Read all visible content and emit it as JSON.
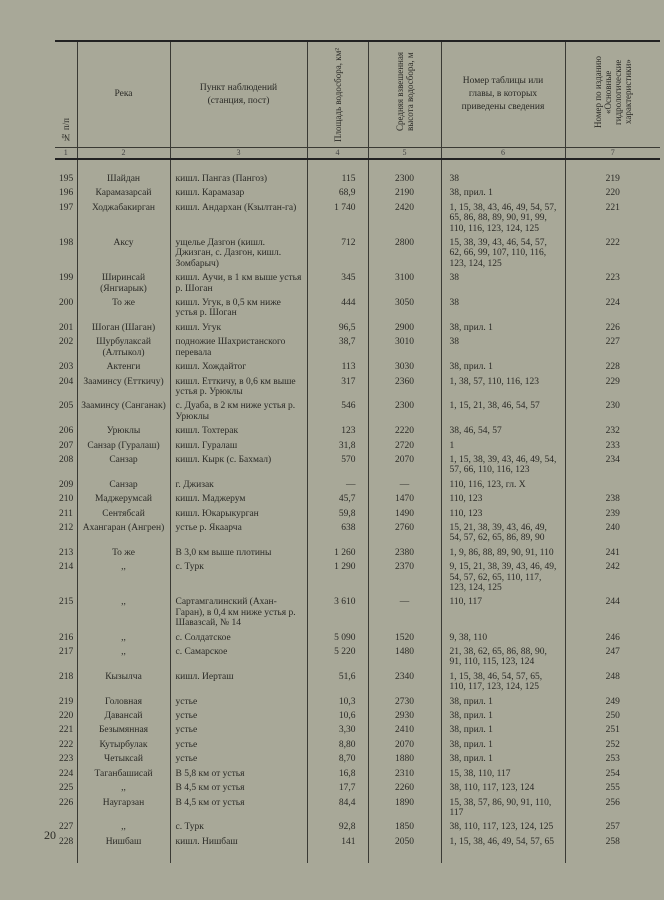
{
  "header": {
    "c1": "№ п/п",
    "c2": "Река",
    "c3": "Пункт наблюдений (станция, пост)",
    "c4": "Площадь водосбора, км²",
    "c5": "Средняя взвешенная высота водосбора, м",
    "c6": "Номер таблицы или главы, в которых приведены сведения",
    "c7": "Номер по изданию «Основные гидрологические характеристики»"
  },
  "colnums": [
    "1",
    "2",
    "3",
    "4",
    "5",
    "6",
    "7"
  ],
  "rows": [
    {
      "n": "195",
      "river": "Шайдан",
      "station": "кишл. Пангаз (Пангоз)",
      "area": "115",
      "height": "2300",
      "refs": "38",
      "pub": "219"
    },
    {
      "n": "196",
      "river": "Карамазарсай",
      "station": "кишл. Карамазар",
      "area": "68,9",
      "height": "2190",
      "refs": "38, прил. 1",
      "pub": "220"
    },
    {
      "n": "197",
      "river": "Ходжабакирган",
      "station": "кишл. Андархан (Кзылтан-га)",
      "area": "1 740",
      "height": "2420",
      "refs": "1, 15, 38, 43, 46, 49, 54, 57, 65, 86, 88, 89, 90, 91, 99, 110, 116, 123, 124, 125",
      "pub": "221"
    },
    {
      "n": "198",
      "river": "Аксу",
      "station": "ущелье Дазгон (кишл. Джизган, с. Дазгон, кишл. Зомбарыч)",
      "area": "712",
      "height": "2800",
      "refs": "15, 38, 39, 43, 46, 54, 57, 62, 66, 99, 107, 110, 116, 123, 124, 125",
      "pub": "222"
    },
    {
      "n": "199",
      "river": "Ширинсай (Янгиарык)",
      "station": "кишл. Аучи, в 1 км выше устья р. Шоган",
      "area": "345",
      "height": "3100",
      "refs": "38",
      "pub": "223"
    },
    {
      "n": "200",
      "river": "То же",
      "station": "кишл. Угук, в 0,5 км ниже устья р. Шоган",
      "area": "444",
      "height": "3050",
      "refs": "38",
      "pub": "224"
    },
    {
      "n": "201",
      "river": "Шоган (Шаган)",
      "station": "кишл. Угук",
      "area": "96,5",
      "height": "2900",
      "refs": "38, прил. 1",
      "pub": "226"
    },
    {
      "n": "202",
      "river": "Шурбулаксай (Алтыкол)",
      "station": "подножие Шахристанского перевала",
      "area": "38,7",
      "height": "3010",
      "refs": "38",
      "pub": "227"
    },
    {
      "n": "203",
      "river": "Актенги",
      "station": "кишл. Хождайтог",
      "area": "113",
      "height": "3030",
      "refs": "38, прил. 1",
      "pub": "228"
    },
    {
      "n": "204",
      "river": "Зааминсу (Етткичу)",
      "station": "кишл. Етткичу, в 0,6 км выше устья р. Урюклы",
      "area": "317",
      "height": "2360",
      "refs": "1, 38, 57, 110, 116, 123",
      "pub": "229"
    },
    {
      "n": "205",
      "river": "Зааминсу (Санганак)",
      "station": "с. Дуаба, в 2 км ниже устья р. Урюклы",
      "area": "546",
      "height": "2300",
      "refs": "1, 15, 21, 38, 46, 54, 57",
      "pub": "230"
    },
    {
      "n": "206",
      "river": "Урюклы",
      "station": "кишл. Тохтерак",
      "area": "123",
      "height": "2220",
      "refs": "38, 46, 54, 57",
      "pub": "232"
    },
    {
      "n": "207",
      "river": "Санзар (Гуралаш)",
      "station": "кишл. Гуралаш",
      "area": "31,8",
      "height": "2720",
      "refs": "1",
      "pub": "233"
    },
    {
      "n": "208",
      "river": "Санзар",
      "station": "кишл. Кырк (с. Бахмал)",
      "area": "570",
      "height": "2070",
      "refs": "1, 15, 38, 39, 43, 46, 49, 54, 57, 66, 110, 116, 123",
      "pub": "234"
    },
    {
      "n": "209",
      "river": "Санзар",
      "station": "г. Джизак",
      "area": "—",
      "height": "—",
      "refs": "110, 116, 123, гл. X",
      "pub": ""
    },
    {
      "n": "210",
      "river": "Маджерумсай",
      "station": "кишл. Маджерум",
      "area": "45,7",
      "height": "1470",
      "refs": "110, 123",
      "pub": "238"
    },
    {
      "n": "211",
      "river": "Сентябсай",
      "station": "кишл. Юкарыкурган",
      "area": "59,8",
      "height": "1490",
      "refs": "110, 123",
      "pub": "239"
    },
    {
      "n": "212",
      "river": "Ахангаран (Ангрен)",
      "station": "устье р. Якаарча",
      "area": "638",
      "height": "2760",
      "refs": "15, 21, 38, 39, 43, 46, 49, 54, 57, 62, 65, 86, 89, 90",
      "pub": "240"
    },
    {
      "n": "213",
      "river": "То же",
      "station": "В 3,0 км выше плотины",
      "area": "1 260",
      "height": "2380",
      "refs": "1, 9, 86, 88, 89, 90, 91, 110",
      "pub": "241"
    },
    {
      "n": "214",
      "river": ",,",
      "station": "с. Турк",
      "area": "1 290",
      "height": "2370",
      "refs": "9, 15, 21, 38, 39, 43, 46, 49, 54, 57, 62, 65, 110, 117, 123, 124, 125",
      "pub": "242"
    },
    {
      "n": "215",
      "river": ",,",
      "station": "Сартамгалинский (Ахан-Гаран), в 0,4 км ниже устья р. Шавазсай, № 14",
      "area": "3 610",
      "height": "—",
      "refs": "110, 117",
      "pub": "244"
    },
    {
      "n": "216",
      "river": ",,",
      "station": "с. Солдатское",
      "area": "5 090",
      "height": "1520",
      "refs": "9, 38, 110",
      "pub": "246"
    },
    {
      "n": "217",
      "river": ",,",
      "station": "с. Самарское",
      "area": "5 220",
      "height": "1480",
      "refs": "21, 38, 62, 65, 86, 88, 90, 91, 110, 115, 123, 124",
      "pub": "247"
    },
    {
      "n": "218",
      "river": "Кызылча",
      "station": "кишл. Иерташ",
      "area": "51,6",
      "height": "2340",
      "refs": "1, 15, 38, 46, 54, 57, 65, 110, 117, 123, 124, 125",
      "pub": "248"
    },
    {
      "n": "219",
      "river": "Головная",
      "station": "устье",
      "area": "10,3",
      "height": "2730",
      "refs": "38, прил. 1",
      "pub": "249"
    },
    {
      "n": "220",
      "river": "Давансай",
      "station": "устье",
      "area": "10,6",
      "height": "2930",
      "refs": "38, прил. 1",
      "pub": "250"
    },
    {
      "n": "221",
      "river": "Безымянная",
      "station": "устье",
      "area": "3,30",
      "height": "2410",
      "refs": "38, прил. 1",
      "pub": "251"
    },
    {
      "n": "222",
      "river": "Кутырбулак",
      "station": "устье",
      "area": "8,80",
      "height": "2070",
      "refs": "38, прил. 1",
      "pub": "252"
    },
    {
      "n": "223",
      "river": "Четыксай",
      "station": "устье",
      "area": "8,70",
      "height": "1880",
      "refs": "38, прил. 1",
      "pub": "253"
    },
    {
      "n": "224",
      "river": "Таганбашисай",
      "station": "В 5,8 км от устья",
      "area": "16,8",
      "height": "2310",
      "refs": "15, 38, 110, 117",
      "pub": "254"
    },
    {
      "n": "225",
      "river": ",,",
      "station": "В 4,5 км от устья",
      "area": "17,7",
      "height": "2260",
      "refs": "38, 110, 117, 123, 124",
      "pub": "255"
    },
    {
      "n": "226",
      "river": "Наугарзан",
      "station": "В 4,5 км от устья",
      "area": "84,4",
      "height": "1890",
      "refs": "15, 38, 57, 86, 90, 91, 110, 117",
      "pub": "256"
    },
    {
      "n": "227",
      "river": ",,",
      "station": "с. Турк",
      "area": "92,8",
      "height": "1850",
      "refs": "38, 110, 117, 123, 124, 125",
      "pub": "257"
    },
    {
      "n": "228",
      "river": "Нишбаш",
      "station": "кишл. Нишбаш",
      "area": "141",
      "height": "2050",
      "refs": "1, 15, 38, 46, 49, 54, 57, 65",
      "pub": "258"
    }
  ],
  "page_number": "20"
}
